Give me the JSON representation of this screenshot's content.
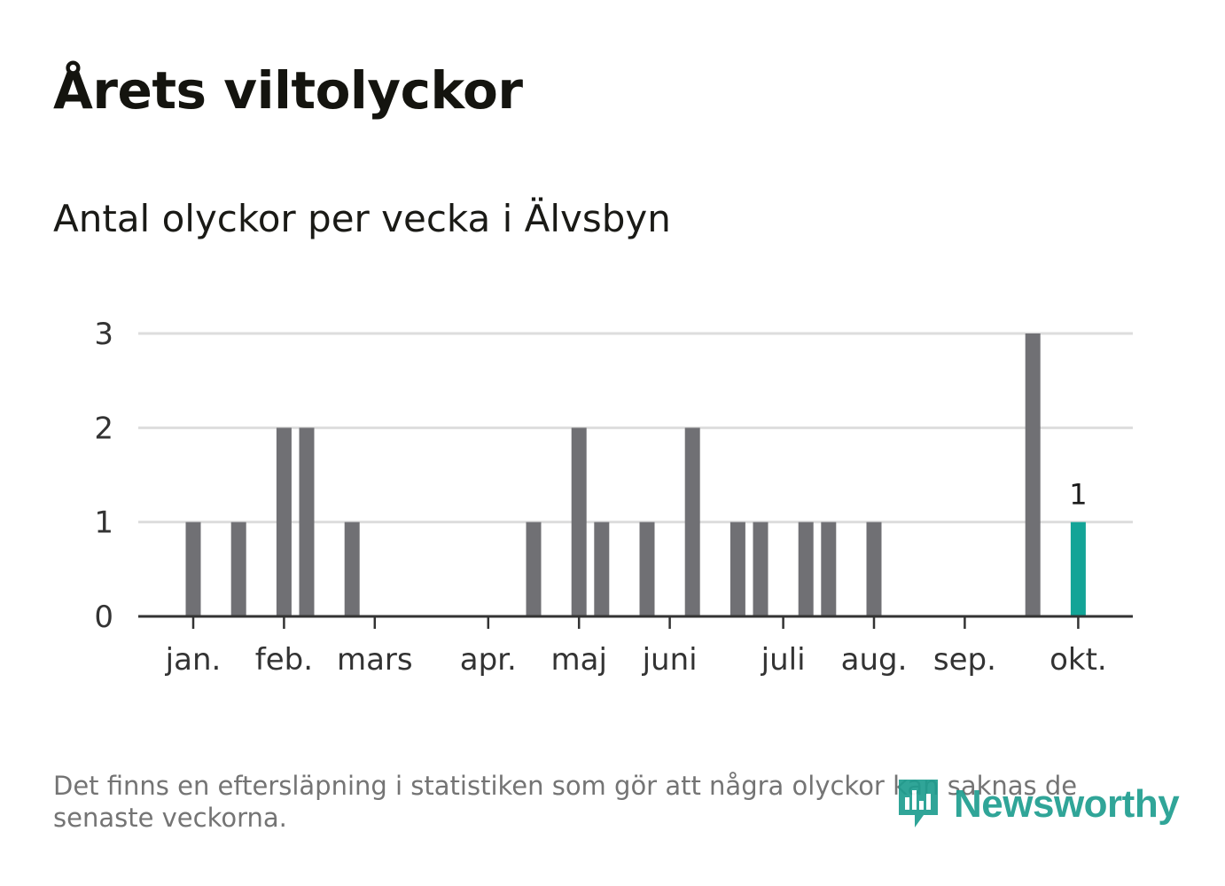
{
  "title": "Årets viltolyckor",
  "subtitle": "Antal olyckor per vecka i Älvsbyn",
  "footnote": "Det finns en eftersläpning i statistiken som gör att några olyckor kan saknas de senaste veckorna.",
  "logo": {
    "text": "Newsworthy",
    "icon": "bar-chart-speech-bubble-icon"
  },
  "colors": {
    "bar": "#707074",
    "highlight": "#13a497",
    "grid": "#dddddd",
    "axis": "#333333",
    "logo": "#1f9e90"
  },
  "chart_data": {
    "type": "bar",
    "x_unit": "week",
    "x_range": [
      1,
      42
    ],
    "ylim": [
      0,
      3
    ],
    "yticks": [
      0,
      1,
      2,
      3
    ],
    "grid": true,
    "month_ticks": [
      {
        "label": "jan.",
        "week": 1
      },
      {
        "label": "feb.",
        "week": 5
      },
      {
        "label": "mars",
        "week": 9
      },
      {
        "label": "apr.",
        "week": 14
      },
      {
        "label": "maj",
        "week": 18
      },
      {
        "label": "juni",
        "week": 22
      },
      {
        "label": "juli",
        "week": 27
      },
      {
        "label": "aug.",
        "week": 31
      },
      {
        "label": "sep.",
        "week": 35
      },
      {
        "label": "okt.",
        "week": 40
      }
    ],
    "weeks": [
      1,
      3,
      5,
      6,
      8,
      16,
      18,
      19,
      21,
      23,
      25,
      26,
      28,
      29,
      31,
      38,
      40
    ],
    "values": [
      1,
      1,
      2,
      2,
      1,
      1,
      2,
      1,
      1,
      2,
      1,
      1,
      1,
      1,
      1,
      3,
      1
    ],
    "highlight": {
      "week": 40,
      "value": 1,
      "label": "1"
    }
  }
}
